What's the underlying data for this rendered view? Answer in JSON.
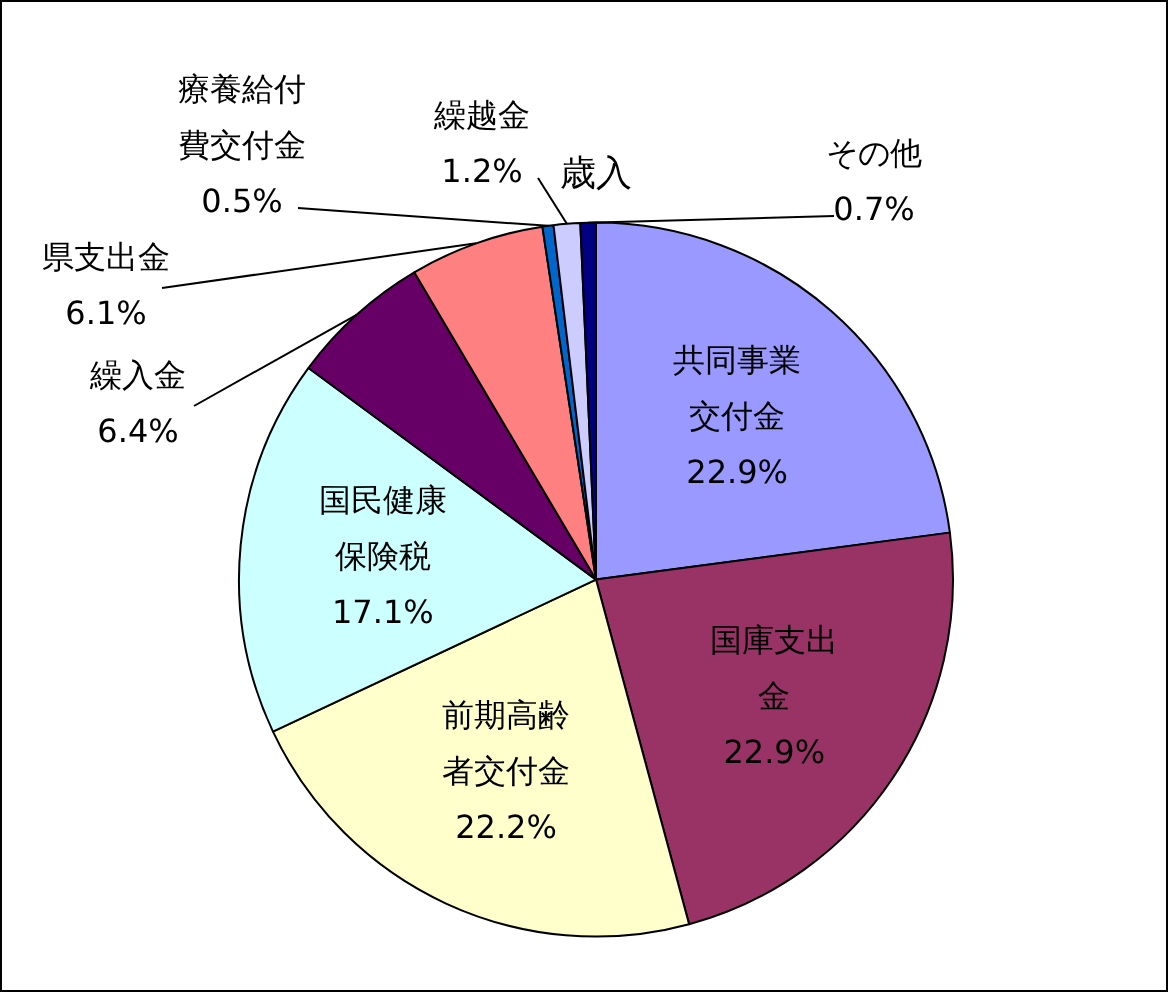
{
  "chart_data": {
    "type": "pie",
    "title": "歳入",
    "categories": [
      "共同事業交付金",
      "国庫支出金",
      "前期高齢者交付金",
      "国民健康保険税",
      "繰入金",
      "県支出金",
      "療養給付費交付金",
      "繰越金",
      "その他"
    ],
    "values": [
      22.9,
      22.9,
      22.2,
      17.1,
      6.4,
      6.1,
      0.5,
      1.2,
      0.7
    ],
    "value_labels": [
      "22.9%",
      "22.9%",
      "22.2%",
      "17.1%",
      "6.4%",
      "6.1%",
      "0.5%",
      "1.2%",
      "0.7%"
    ],
    "colors": [
      "#9999ff",
      "#993366",
      "#ffffcc",
      "#ccffff",
      "#660066",
      "#ff8080",
      "#0066cc",
      "#ccccff",
      "#000080"
    ],
    "legend": false
  }
}
